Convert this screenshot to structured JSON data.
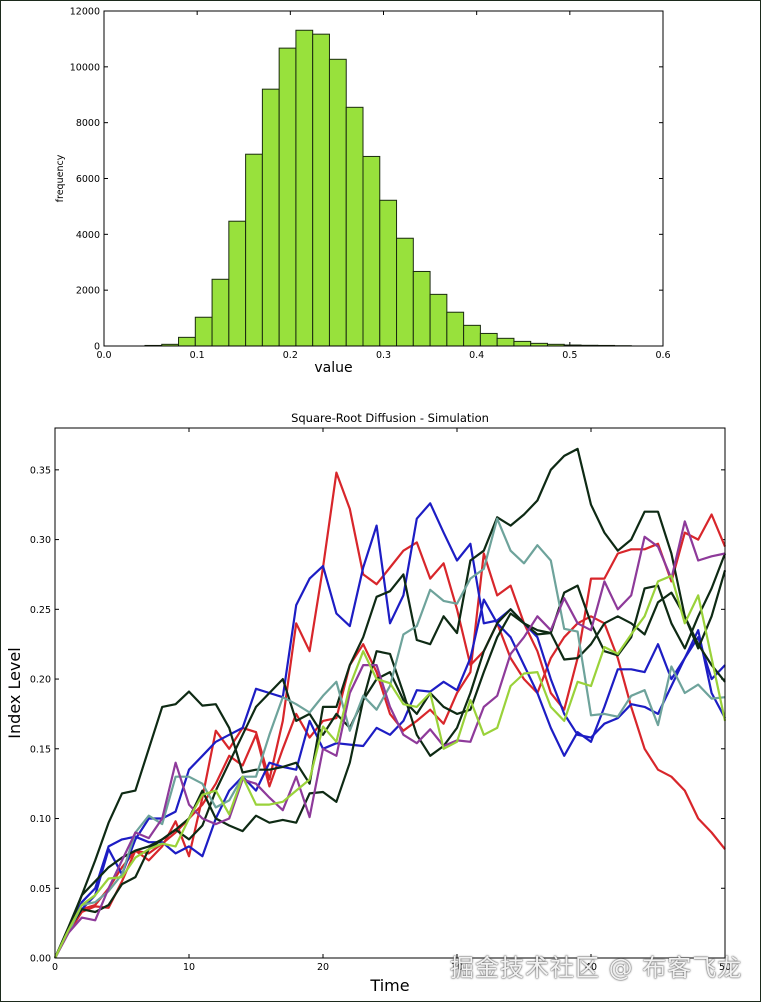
{
  "chart_data": [
    {
      "type": "bar",
      "subtype": "histogram",
      "xlabel": "value",
      "ylabel": "frequency",
      "xlim": [
        0.0,
        0.6
      ],
      "ylim": [
        0,
        12000
      ],
      "xticks": [
        "0.0",
        "0.1",
        "0.2",
        "0.3",
        "0.4",
        "0.5",
        "0.6"
      ],
      "yticks": [
        "0",
        "2000",
        "4000",
        "6000",
        "8000",
        "10000",
        "12000"
      ],
      "bin_start": 0.044,
      "bin_width": 0.018,
      "values": [
        20,
        60,
        310,
        1030,
        2390,
        4470,
        6870,
        9200,
        10670,
        11310,
        11170,
        10270,
        8550,
        6790,
        5220,
        3860,
        2670,
        1850,
        1210,
        740,
        450,
        275,
        165,
        95,
        60,
        35,
        25,
        20,
        10
      ],
      "bar_color": "#98e13c",
      "edge_color": "#1a2a10",
      "grid": false
    },
    {
      "type": "line",
      "title": "Square-Root Diffusion - Simulation",
      "xlabel": "Time",
      "ylabel": "Index Level",
      "xlim": [
        0,
        50
      ],
      "ylim": [
        0,
        0.38
      ],
      "xticks": [
        "0",
        "10",
        "20",
        "30",
        "40",
        "50"
      ],
      "yticks": [
        "0.00",
        "0.05",
        "0.10",
        "0.15",
        "0.20",
        "0.25",
        "0.30",
        "0.35"
      ],
      "grid": false,
      "series": [
        {
          "color": "#d8262b",
          "values": [
            0,
            0.018,
            0.033,
            0.037,
            0.036,
            0.055,
            0.077,
            0.07,
            0.08,
            0.098,
            0.073,
            0.115,
            0.163,
            0.15,
            0.165,
            0.162,
            0.128,
            0.17,
            0.24,
            0.22,
            0.28,
            0.348,
            0.322,
            0.275,
            0.268,
            0.28,
            0.292,
            0.298,
            0.272,
            0.283,
            0.25,
            0.21,
            0.22,
            0.24,
            0.215,
            0.2,
            0.19,
            0.215,
            0.23,
            0.24,
            0.245,
            0.24,
            0.215,
            0.18,
            0.15,
            0.135,
            0.13,
            0.12,
            0.1,
            0.09,
            0.078
          ]
        },
        {
          "color": "#d8262b",
          "values": [
            0,
            0.02,
            0.035,
            0.038,
            0.05,
            0.065,
            0.077,
            0.075,
            0.082,
            0.09,
            0.1,
            0.11,
            0.125,
            0.145,
            0.138,
            0.16,
            0.123,
            0.15,
            0.175,
            0.158,
            0.17,
            0.172,
            0.21,
            0.225,
            0.205,
            0.175,
            0.163,
            0.17,
            0.178,
            0.168,
            0.19,
            0.205,
            0.29,
            0.26,
            0.267,
            0.24,
            0.22,
            0.19,
            0.178,
            0.215,
            0.272,
            0.272,
            0.29,
            0.293,
            0.293,
            0.297,
            0.27,
            0.305,
            0.3,
            0.318,
            0.295
          ]
        },
        {
          "color": "#1d1dc4",
          "values": [
            0,
            0.02,
            0.035,
            0.045,
            0.078,
            0.06,
            0.085,
            0.1,
            0.1,
            0.105,
            0.135,
            0.145,
            0.155,
            0.16,
            0.165,
            0.193,
            0.19,
            0.187,
            0.253,
            0.272,
            0.281,
            0.247,
            0.238,
            0.28,
            0.31,
            0.24,
            0.26,
            0.315,
            0.326,
            0.305,
            0.285,
            0.297,
            0.24,
            0.242,
            0.25,
            0.24,
            0.23,
            0.2,
            0.175,
            0.16,
            0.158,
            0.168,
            0.172,
            0.182,
            0.18,
            0.175,
            0.195,
            0.215,
            0.235,
            0.19,
            0.172
          ]
        },
        {
          "color": "#1d1dc4",
          "values": [
            0,
            0.02,
            0.04,
            0.05,
            0.08,
            0.085,
            0.087,
            0.083,
            0.083,
            0.075,
            0.08,
            0.073,
            0.1,
            0.12,
            0.13,
            0.12,
            0.14,
            0.137,
            0.135,
            0.17,
            0.15,
            0.154,
            0.153,
            0.152,
            0.165,
            0.16,
            0.17,
            0.192,
            0.191,
            0.198,
            0.192,
            0.215,
            0.257,
            0.24,
            0.23,
            0.21,
            0.19,
            0.165,
            0.145,
            0.162,
            0.155,
            0.18,
            0.207,
            0.207,
            0.205,
            0.225,
            0.2,
            0.215,
            0.23,
            0.2,
            0.21
          ]
        },
        {
          "color": "#0e2a14",
          "values": [
            0,
            0.022,
            0.045,
            0.07,
            0.097,
            0.118,
            0.12,
            0.15,
            0.18,
            0.182,
            0.191,
            0.181,
            0.182,
            0.165,
            0.133,
            0.135,
            0.135,
            0.137,
            0.14,
            0.125,
            0.18,
            0.18,
            0.21,
            0.23,
            0.259,
            0.263,
            0.275,
            0.228,
            0.225,
            0.245,
            0.233,
            0.285,
            0.292,
            0.316,
            0.31,
            0.318,
            0.328,
            0.35,
            0.36,
            0.365,
            0.325,
            0.305,
            0.292,
            0.3,
            0.32,
            0.32,
            0.29,
            0.245,
            0.222,
            0.245,
            0.278
          ]
        },
        {
          "color": "#0e2a14",
          "values": [
            0,
            0.02,
            0.045,
            0.055,
            0.065,
            0.072,
            0.077,
            0.08,
            0.085,
            0.092,
            0.085,
            0.095,
            0.12,
            0.14,
            0.16,
            0.18,
            0.19,
            0.2,
            0.17,
            0.175,
            0.16,
            0.175,
            0.165,
            0.185,
            0.2,
            0.205,
            0.185,
            0.175,
            0.19,
            0.18,
            0.175,
            0.178,
            0.205,
            0.23,
            0.247,
            0.24,
            0.232,
            0.233,
            0.262,
            0.267,
            0.24,
            0.22,
            0.217,
            0.23,
            0.265,
            0.267,
            0.24,
            0.222,
            0.245,
            0.265,
            0.29
          ]
        },
        {
          "color": "#0e2a14",
          "values": [
            0,
            0.02,
            0.035,
            0.033,
            0.038,
            0.053,
            0.058,
            0.078,
            0.085,
            0.092,
            0.1,
            0.12,
            0.1,
            0.095,
            0.091,
            0.102,
            0.097,
            0.099,
            0.097,
            0.118,
            0.119,
            0.112,
            0.14,
            0.185,
            0.22,
            0.218,
            0.19,
            0.16,
            0.145,
            0.152,
            0.165,
            0.19,
            0.22,
            0.24,
            0.25,
            0.24,
            0.235,
            0.233,
            0.214,
            0.215,
            0.225,
            0.24,
            0.245,
            0.24,
            0.232,
            0.255,
            0.262,
            0.245,
            0.225,
            0.21,
            0.198
          ]
        },
        {
          "color": "#6ea39b",
          "values": [
            0,
            0.018,
            0.038,
            0.04,
            0.048,
            0.06,
            0.09,
            0.102,
            0.096,
            0.13,
            0.13,
            0.125,
            0.108,
            0.113,
            0.13,
            0.13,
            0.16,
            0.187,
            0.182,
            0.176,
            0.188,
            0.198,
            0.163,
            0.188,
            0.178,
            0.195,
            0.232,
            0.238,
            0.264,
            0.256,
            0.254,
            0.272,
            0.279,
            0.315,
            0.292,
            0.283,
            0.296,
            0.285,
            0.236,
            0.234,
            0.174,
            0.175,
            0.173,
            0.188,
            0.192,
            0.167,
            0.209,
            0.19,
            0.196,
            0.186,
            0.187
          ]
        },
        {
          "color": "#8e3a9a",
          "values": [
            0,
            0.018,
            0.029,
            0.027,
            0.05,
            0.07,
            0.09,
            0.086,
            0.1,
            0.14,
            0.11,
            0.1,
            0.096,
            0.1,
            0.128,
            0.125,
            0.115,
            0.106,
            0.13,
            0.101,
            0.15,
            0.145,
            0.19,
            0.21,
            0.21,
            0.18,
            0.16,
            0.154,
            0.164,
            0.152,
            0.156,
            0.155,
            0.18,
            0.188,
            0.218,
            0.23,
            0.245,
            0.235,
            0.258,
            0.24,
            0.235,
            0.27,
            0.25,
            0.26,
            0.302,
            0.295,
            0.272,
            0.313,
            0.285,
            0.288,
            0.29
          ]
        },
        {
          "color": "#9ad23a",
          "values": [
            0,
            0.02,
            0.038,
            0.045,
            0.057,
            0.058,
            0.072,
            0.078,
            0.082,
            0.08,
            0.1,
            0.117,
            0.12,
            0.103,
            0.13,
            0.11,
            0.11,
            0.112,
            0.12,
            0.128,
            0.166,
            0.155,
            0.195,
            0.22,
            0.2,
            0.197,
            0.182,
            0.18,
            0.19,
            0.15,
            0.155,
            0.185,
            0.16,
            0.165,
            0.195,
            0.204,
            0.205,
            0.18,
            0.17,
            0.198,
            0.195,
            0.223,
            0.218,
            0.232,
            0.245,
            0.27,
            0.274,
            0.24,
            0.26,
            0.215,
            0.17
          ]
        }
      ]
    }
  ],
  "watermark": "掘金技术社区 @ 布客飞龙"
}
